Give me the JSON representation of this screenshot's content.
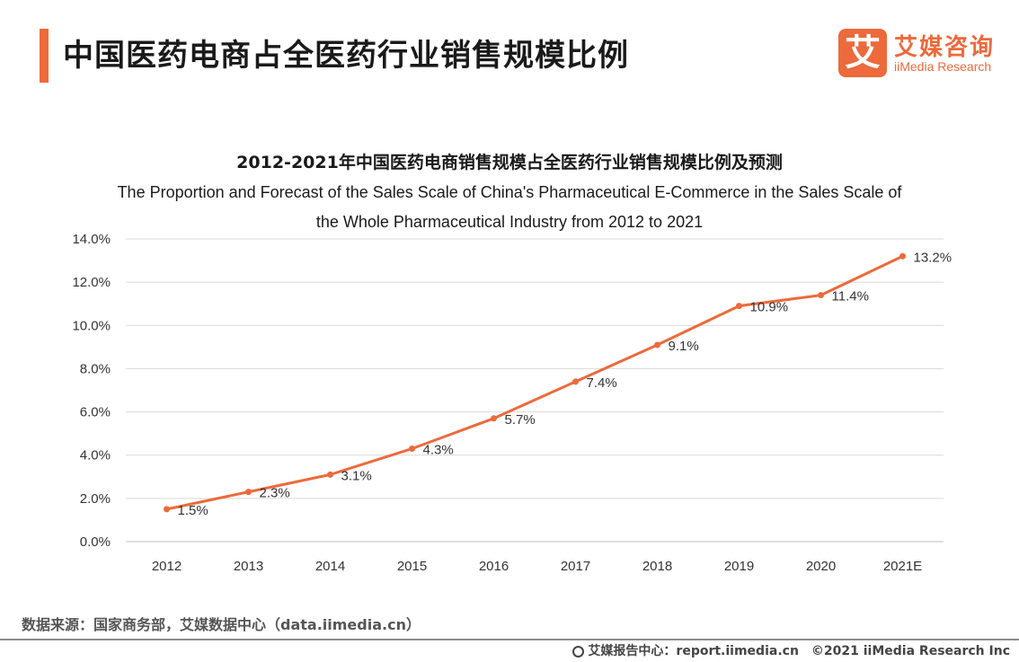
{
  "header": {
    "title": "中国医药电商占全医药行业销售规模比例"
  },
  "logo": {
    "mark": "艾",
    "name_cn": "艾媒咨询",
    "name_en": "iiMedia Research"
  },
  "colors": {
    "accent": "#ec6a3b",
    "line": "#ec6a3b",
    "grid": "#d9d9d9"
  },
  "chart_data": {
    "type": "line",
    "title": "2012-2021年中国医药电商销售规模占全医药行业销售规模比例及预测",
    "subtitle_line1": "The Proportion and Forecast of the Sales Scale of China's Pharmaceutical E-Commerce in the Sales Scale of",
    "subtitle_line2": "the Whole Pharmaceutical Industry from 2012 to 2021",
    "categories": [
      "2012",
      "2013",
      "2014",
      "2015",
      "2016",
      "2017",
      "2018",
      "2019",
      "2020",
      "2021E"
    ],
    "series": [
      {
        "name": "比例",
        "values": [
          1.5,
          2.3,
          3.1,
          4.3,
          5.7,
          7.4,
          9.1,
          10.9,
          11.4,
          13.2
        ]
      }
    ],
    "data_labels": [
      "1.5%",
      "2.3%",
      "3.1%",
      "4.3%",
      "5.7%",
      "7.4%",
      "9.1%",
      "10.9%",
      "11.4%",
      "13.2%"
    ],
    "ylim": [
      0,
      14
    ],
    "yticks": [
      0,
      2,
      4,
      6,
      8,
      10,
      12,
      14
    ],
    "ytick_labels": [
      "0.0%",
      "2.0%",
      "4.0%",
      "6.0%",
      "8.0%",
      "10.0%",
      "12.0%",
      "14.0%"
    ],
    "xlabel": "",
    "ylabel": "",
    "grid": true
  },
  "footer": {
    "source": "数据来源：国家商务部，艾媒数据中心（data.iimedia.cn）",
    "report_site": "艾媒报告中心：report.iimedia.cn",
    "copyright": "©2021  iiMedia Research  Inc"
  }
}
